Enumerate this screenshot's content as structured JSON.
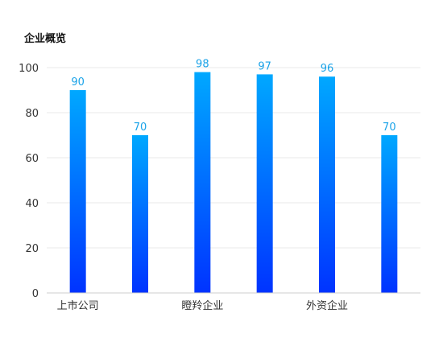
{
  "chart_data": {
    "type": "bar",
    "title": "企业概览",
    "xlabel": "",
    "ylabel": "",
    "ylim": [
      0,
      100
    ],
    "yticks": [
      0,
      20,
      40,
      60,
      80,
      100
    ],
    "categories": [
      "上市公司",
      "",
      "瞪羚企业",
      "",
      "外资企业",
      ""
    ],
    "values": [
      90,
      70,
      98,
      97,
      96,
      70
    ],
    "grid": true,
    "legend": "none",
    "data_labels": true
  },
  "colors": {
    "bar_top": "#00a8ff",
    "bar_bottom": "#0033ff",
    "label": "#1aa3e8",
    "grid": "#e8e8e8",
    "axis": "#cccccc",
    "tick_text": "#333333"
  }
}
